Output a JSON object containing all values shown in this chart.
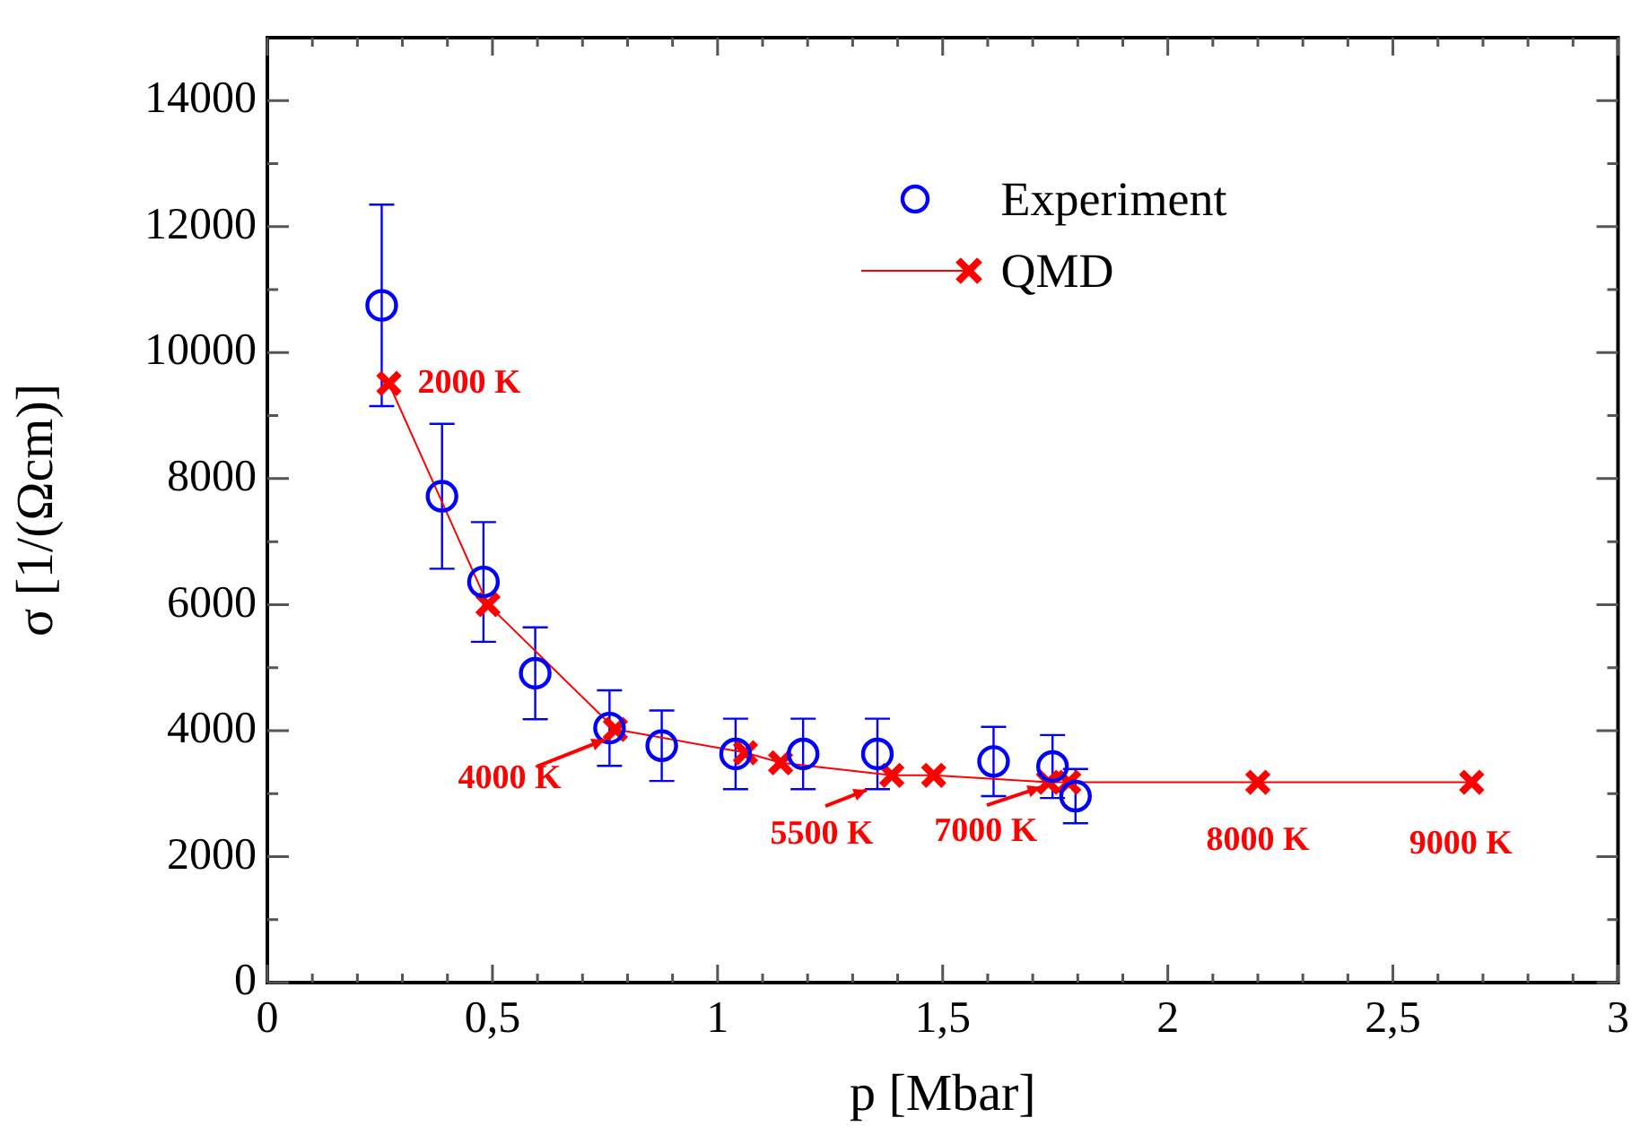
{
  "chart_data": {
    "type": "scatter",
    "xlabel": "p [Mbar]",
    "ylabel": "σ [1/(Ωcm)]",
    "xlim": [
      0,
      3
    ],
    "ylim": [
      0,
      15000
    ],
    "xticks": [
      0,
      {
        "value": 0.1,
        "label": null
      },
      {
        "value": 0.2,
        "label": null
      },
      {
        "value": 0.3,
        "label": null
      },
      {
        "value": 0.4,
        "label": null
      },
      {
        "value": 0.5,
        "label": "0,5"
      },
      {
        "value": 0.6,
        "label": null
      },
      {
        "value": 0.7,
        "label": null
      },
      {
        "value": 0.8,
        "label": null
      },
      {
        "value": 0.9,
        "label": null
      },
      1,
      {
        "value": 1.1,
        "label": null
      },
      {
        "value": 1.2,
        "label": null
      },
      {
        "value": 1.3,
        "label": null
      },
      {
        "value": 1.4,
        "label": null
      },
      {
        "value": 1.5,
        "label": "1,5"
      },
      {
        "value": 1.6,
        "label": null
      },
      {
        "value": 1.7,
        "label": null
      },
      {
        "value": 1.8,
        "label": null
      },
      {
        "value": 1.9,
        "label": null
      },
      2,
      {
        "value": 2.1,
        "label": null
      },
      {
        "value": 2.2,
        "label": null
      },
      {
        "value": 2.3,
        "label": null
      },
      {
        "value": 2.4,
        "label": null
      },
      {
        "value": 2.5,
        "label": "2,5"
      },
      {
        "value": 2.6,
        "label": null
      },
      {
        "value": 2.7,
        "label": null
      },
      {
        "value": 2.8,
        "label": null
      },
      {
        "value": 2.9,
        "label": null
      },
      3
    ],
    "yticks": [
      0,
      {
        "value": 1000,
        "label": null
      },
      2000,
      {
        "value": 3000,
        "label": null
      },
      4000,
      {
        "value": 5000,
        "label": null
      },
      6000,
      {
        "value": 7000,
        "label": null
      },
      8000,
      {
        "value": 9000,
        "label": null
      },
      10000,
      {
        "value": 11000,
        "label": null
      },
      12000,
      {
        "value": 13000,
        "label": null
      },
      14000
    ],
    "grid": false,
    "legend": "top right",
    "series": [
      {
        "name": "Experiment",
        "type": "scatter",
        "color": "#0000ff",
        "marker": "circle",
        "x": [
          0.254,
          0.388,
          0.48,
          0.595,
          0.76,
          0.876,
          1.04,
          1.19,
          1.355,
          1.613,
          1.744,
          1.795
        ],
        "values": [
          10750,
          7720,
          6360,
          4910,
          4040,
          3760,
          3630,
          3630,
          3630,
          3510,
          3430,
          2960
        ],
        "errors": [
          1600,
          1150,
          950,
          730,
          600,
          560,
          560,
          560,
          560,
          550,
          500,
          430
        ]
      },
      {
        "name": "QMD",
        "type": "line",
        "color": "#ff0000",
        "marker": "cross",
        "x": [
          0.27,
          0.49,
          0.773,
          1.062,
          1.14,
          1.387,
          1.48,
          1.735,
          1.78,
          2.2,
          2.675
        ],
        "values": [
          9510,
          6000,
          4020,
          3650,
          3490,
          3290,
          3290,
          3180,
          3180,
          3180,
          3180
        ]
      }
    ],
    "annotations": [
      {
        "text": "2000 K",
        "x": 0.27,
        "y": 9510
      },
      {
        "text": "4000 K",
        "x": 0.773,
        "y": 4020
      },
      {
        "text": "5500 K",
        "x": 1.387,
        "y": 3290
      },
      {
        "text": "7000 K",
        "x": 1.735,
        "y": 3180
      },
      {
        "text": "8000 K",
        "x": 2.2,
        "y": 3180
      },
      {
        "text": "9000 K",
        "x": 2.675,
        "y": 3180
      }
    ]
  }
}
